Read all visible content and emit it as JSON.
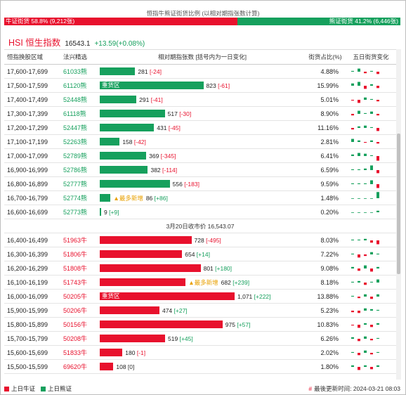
{
  "ratio": {
    "title": "恒指牛熊证街货比例 (以相对期指张数计算)",
    "bull_label": "牛证街货 58.8% (9,212张)",
    "bear_label": "熊证街货 41.2% (6,446张)",
    "bull_fraction": 0.588,
    "bull_color": "#e8112d",
    "bear_color": "#16a05d"
  },
  "index": {
    "name": "HSI 恒生指数",
    "value": "16543.1",
    "change": "+13.59(+0.08%)"
  },
  "columns": {
    "range": "恒指换股区域",
    "code": "法兴精选",
    "bar": "相对期指张数 [括号内为一日变化]",
    "pct": "街货占比(%)",
    "spark": "五日街货变化"
  },
  "max_amount": 1071,
  "rows_bear": [
    {
      "range": "17,600-17,699",
      "code": "61033熊",
      "amount": 281,
      "amount_label": "281",
      "change": "[-24]",
      "pct": "4.88%",
      "spark": [
        1,
        4,
        -2,
        1,
        -3
      ]
    },
    {
      "range": "17,500-17,599",
      "code": "61120熊",
      "amount": 823,
      "amount_label": "823",
      "change": "[-61]",
      "tag": "重货区",
      "pct": "15.99%",
      "spark": [
        3,
        5,
        -4,
        2,
        -3
      ]
    },
    {
      "range": "17,400-17,499",
      "code": "52448熊",
      "amount": 291,
      "amount_label": "291",
      "change": "[-41]",
      "pct": "5.01%",
      "spark": [
        -1,
        -4,
        3,
        1,
        -2
      ]
    },
    {
      "range": "17,300-17,399",
      "code": "61118熊",
      "amount": 517,
      "amount_label": "517",
      "change": "[-30]",
      "pct": "8.90%",
      "spark": [
        -2,
        4,
        1,
        3,
        -2
      ]
    },
    {
      "range": "17,200-17,299",
      "code": "52447熊",
      "amount": 431,
      "amount_label": "431",
      "change": "[-45]",
      "pct": "11.16%",
      "spark": [
        -2,
        2,
        3,
        1,
        -4
      ]
    },
    {
      "range": "17,100-17,199",
      "code": "52263熊",
      "amount": 158,
      "amount_label": "158",
      "change": "[-42]",
      "pct": "2.81%",
      "spark": [
        4,
        2,
        -1,
        2,
        -2
      ]
    },
    {
      "range": "17,000-17,099",
      "code": "52789熊",
      "amount": 369,
      "amount_label": "369",
      "change": "[-345]",
      "pct": "6.41%",
      "spark": [
        2,
        4,
        3,
        1,
        -6
      ]
    },
    {
      "range": "16,900-16,999",
      "code": "52786熊",
      "amount": 382,
      "amount_label": "382",
      "change": "[-114]",
      "pct": "6.59%",
      "spark": [
        1,
        1,
        2,
        6,
        -4
      ]
    },
    {
      "range": "16,800-16,899",
      "code": "52777熊",
      "amount": 556,
      "amount_label": "556",
      "change": "[-183]",
      "pct": "9.59%",
      "spark": [
        1,
        1,
        1,
        5,
        -5
      ]
    },
    {
      "range": "16,700-16,799",
      "code": "52774熊",
      "amount": 86,
      "amount_label": "86",
      "change": "[+86]",
      "most": "▲最多新增",
      "pct": "1.48%",
      "spark": [
        0,
        0,
        0,
        0,
        8
      ]
    },
    {
      "range": "16,600-16,699",
      "code": "52773熊",
      "amount": 9,
      "amount_label": "9",
      "change": "[+9]",
      "pct": "0.20%",
      "spark": [
        0,
        0,
        0,
        0,
        2
      ]
    }
  ],
  "separator": "3月20日收市价 16,543.07",
  "rows_bull": [
    {
      "range": "16,400-16,499",
      "code": "51963牛",
      "amount": 728,
      "amount_label": "728",
      "change": "[-495]",
      "pct": "8.03%",
      "spark": [
        1,
        1,
        2,
        -3,
        -5
      ]
    },
    {
      "range": "16,300-16,399",
      "code": "51806牛",
      "amount": 654,
      "amount_label": "654",
      "change": "[+14]",
      "pct": "7.22%",
      "spark": [
        1,
        -4,
        -2,
        3,
        1
      ]
    },
    {
      "range": "16,200-16,299",
      "code": "51808牛",
      "amount": 801,
      "amount_label": "801",
      "change": "[+180]",
      "pct": "9.08%",
      "spark": [
        2,
        -3,
        4,
        -4,
        2
      ]
    },
    {
      "range": "16,100-16,199",
      "code": "51743牛",
      "amount": 682,
      "amount_label": "682",
      "change": "[+239]",
      "most": "▲最多新增",
      "pct": "8.18%",
      "spark": [
        1,
        2,
        -3,
        1,
        4
      ]
    },
    {
      "range": "16,000-16,099",
      "code": "50205牛",
      "amount": 1071,
      "amount_label": "1,071",
      "change": "[+222]",
      "tag": "重货区",
      "pct": "13.88%",
      "spark": [
        1,
        -2,
        3,
        -3,
        3
      ]
    },
    {
      "range": "15,900-15,999",
      "code": "50206牛",
      "amount": 474,
      "amount_label": "474",
      "change": "[+27]",
      "pct": "5.23%",
      "spark": [
        -2,
        -3,
        3,
        2,
        1
      ]
    },
    {
      "range": "15,800-15,899",
      "code": "50156牛",
      "amount": 975,
      "amount_label": "975",
      "change": "[+57]",
      "pct": "10.83%",
      "spark": [
        -1,
        -4,
        2,
        -3,
        2
      ]
    },
    {
      "range": "15,700-15,799",
      "code": "50208牛",
      "amount": 519,
      "amount_label": "519",
      "change": "[+45]",
      "pct": "6.26%",
      "spark": [
        2,
        -3,
        3,
        -2,
        1
      ]
    },
    {
      "range": "15,600-15,699",
      "code": "51833牛",
      "amount": 180,
      "amount_label": "180",
      "change": "[-1]",
      "pct": "2.02%",
      "spark": [
        1,
        -3,
        3,
        -2,
        1
      ]
    },
    {
      "range": "15,500-15,599",
      "code": "69620牛",
      "amount": 108,
      "amount_label": "108",
      "change": "[0]",
      "pct": "1.80%",
      "spark": [
        2,
        -4,
        2,
        -3,
        2
      ]
    }
  ],
  "footer": {
    "legend_bull": "上日牛证",
    "legend_bear": "上日熊证",
    "update_hash": "#",
    "update_text": "最後更新时间: 2024-03-21 08:03"
  }
}
